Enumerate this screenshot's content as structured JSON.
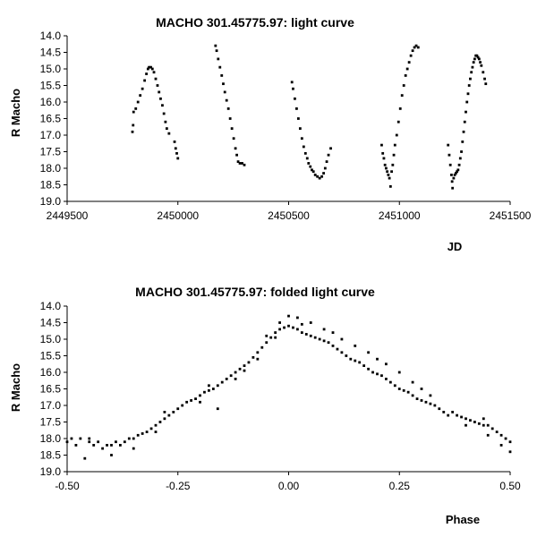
{
  "chart_data": [
    {
      "type": "scatter",
      "title": "MACHO 301.45775.97: light curve",
      "xlabel": "JD",
      "ylabel": "R Macho",
      "xlim": [
        2449500,
        2451500
      ],
      "ylim": [
        14.0,
        19.0
      ],
      "y_inverted": true,
      "grid": false,
      "xticks": [
        "2449500",
        "2450000",
        "2450500",
        "2451000",
        "2451500"
      ],
      "yticks": [
        "14.0",
        "14.5",
        "15.0",
        "15.5",
        "16.0",
        "16.5",
        "17.0",
        "17.5",
        "18.0",
        "18.5",
        "19.0"
      ],
      "series": [
        {
          "points": [
            [
              2449795,
              16.9
            ],
            [
              2449798,
              16.7
            ],
            [
              2449800,
              16.3
            ],
            [
              2449810,
              16.2
            ],
            [
              2449820,
              16.0
            ],
            [
              2449830,
              15.8
            ],
            [
              2449840,
              15.6
            ],
            [
              2449850,
              15.35
            ],
            [
              2449858,
              15.15
            ],
            [
              2449865,
              15.0
            ],
            [
              2449870,
              14.95
            ],
            [
              2449878,
              14.95
            ],
            [
              2449885,
              15.0
            ],
            [
              2449892,
              15.1
            ],
            [
              2449900,
              15.3
            ],
            [
              2449908,
              15.5
            ],
            [
              2449915,
              15.7
            ],
            [
              2449922,
              15.9
            ],
            [
              2449930,
              16.1
            ],
            [
              2449937,
              16.35
            ],
            [
              2449944,
              16.6
            ],
            [
              2449950,
              16.8
            ],
            [
              2449960,
              16.95
            ],
            [
              2449985,
              17.2
            ],
            [
              2449990,
              17.4
            ],
            [
              2449995,
              17.55
            ],
            [
              2450000,
              17.7
            ],
            [
              2450170,
              14.3
            ],
            [
              2450175,
              14.45
            ],
            [
              2450182,
              14.7
            ],
            [
              2450190,
              14.95
            ],
            [
              2450198,
              15.2
            ],
            [
              2450205,
              15.45
            ],
            [
              2450212,
              15.7
            ],
            [
              2450220,
              15.95
            ],
            [
              2450228,
              16.2
            ],
            [
              2450236,
              16.5
            ],
            [
              2450244,
              16.8
            ],
            [
              2450252,
              17.1
            ],
            [
              2450260,
              17.4
            ],
            [
              2450266,
              17.6
            ],
            [
              2450272,
              17.8
            ],
            [
              2450280,
              17.85
            ],
            [
              2450290,
              17.85
            ],
            [
              2450300,
              17.9
            ],
            [
              2450515,
              15.4
            ],
            [
              2450520,
              15.6
            ],
            [
              2450528,
              15.9
            ],
            [
              2450536,
              16.2
            ],
            [
              2450544,
              16.5
            ],
            [
              2450552,
              16.8
            ],
            [
              2450560,
              17.1
            ],
            [
              2450568,
              17.35
            ],
            [
              2450576,
              17.55
            ],
            [
              2450584,
              17.7
            ],
            [
              2450590,
              17.85
            ],
            [
              2450598,
              17.95
            ],
            [
              2450605,
              18.05
            ],
            [
              2450612,
              18.1
            ],
            [
              2450620,
              18.2
            ],
            [
              2450630,
              18.25
            ],
            [
              2450640,
              18.3
            ],
            [
              2450650,
              18.25
            ],
            [
              2450658,
              18.15
            ],
            [
              2450665,
              18.0
            ],
            [
              2450672,
              17.8
            ],
            [
              2450680,
              17.6
            ],
            [
              2450690,
              17.4
            ],
            [
              2450920,
              17.3
            ],
            [
              2450925,
              17.55
            ],
            [
              2450930,
              17.7
            ],
            [
              2450935,
              17.9
            ],
            [
              2450940,
              18.0
            ],
            [
              2450945,
              18.1
            ],
            [
              2450950,
              18.2
            ],
            [
              2450955,
              18.3
            ],
            [
              2450960,
              18.55
            ],
            [
              2450965,
              18.1
            ],
            [
              2450970,
              17.9
            ],
            [
              2450975,
              17.6
            ],
            [
              2450980,
              17.3
            ],
            [
              2450988,
              17.0
            ],
            [
              2450996,
              16.6
            ],
            [
              2451004,
              16.2
            ],
            [
              2451012,
              15.8
            ],
            [
              2451020,
              15.5
            ],
            [
              2451028,
              15.2
            ],
            [
              2451036,
              15.0
            ],
            [
              2451044,
              14.8
            ],
            [
              2451052,
              14.6
            ],
            [
              2451060,
              14.45
            ],
            [
              2451068,
              14.35
            ],
            [
              2451076,
              14.3
            ],
            [
              2451085,
              14.35
            ],
            [
              2451220,
              17.3
            ],
            [
              2451225,
              17.6
            ],
            [
              2451230,
              17.9
            ],
            [
              2451235,
              18.2
            ],
            [
              2451238,
              18.4
            ],
            [
              2451240,
              18.6
            ],
            [
              2451245,
              18.3
            ],
            [
              2451250,
              18.2
            ],
            [
              2451255,
              18.15
            ],
            [
              2451260,
              18.1
            ],
            [
              2451265,
              18.05
            ],
            [
              2451270,
              17.9
            ],
            [
              2451275,
              17.7
            ],
            [
              2451280,
              17.5
            ],
            [
              2451285,
              17.2
            ],
            [
              2451290,
              16.9
            ],
            [
              2451295,
              16.6
            ],
            [
              2451300,
              16.3
            ],
            [
              2451305,
              16.0
            ],
            [
              2451310,
              15.75
            ],
            [
              2451315,
              15.5
            ],
            [
              2451320,
              15.3
            ],
            [
              2451325,
              15.1
            ],
            [
              2451330,
              14.95
            ],
            [
              2451335,
              14.8
            ],
            [
              2451340,
              14.7
            ],
            [
              2451345,
              14.6
            ],
            [
              2451350,
              14.6
            ],
            [
              2451355,
              14.65
            ],
            [
              2451360,
              14.7
            ],
            [
              2451365,
              14.8
            ],
            [
              2451370,
              14.9
            ],
            [
              2451378,
              15.1
            ],
            [
              2451385,
              15.3
            ],
            [
              2451390,
              15.45
            ]
          ]
        }
      ]
    },
    {
      "type": "scatter",
      "title": "MACHO 301.45775.97: folded light curve",
      "xlabel": "Phase",
      "ylabel": "R Macho",
      "xlim": [
        -0.5,
        0.5
      ],
      "ylim": [
        14.0,
        19.0
      ],
      "y_inverted": true,
      "grid": false,
      "xticks": [
        "-0.50",
        "-0.25",
        "0.00",
        "0.25",
        "0.50"
      ],
      "yticks": [
        "14.0",
        "14.5",
        "15.0",
        "15.5",
        "16.0",
        "16.5",
        "17.0",
        "17.5",
        "18.0",
        "18.5",
        "19.0"
      ],
      "series": [
        {
          "points": [
            [
              -0.5,
              18.1
            ],
            [
              -0.49,
              18.0
            ],
            [
              -0.48,
              18.2
            ],
            [
              -0.47,
              18.0
            ],
            [
              -0.46,
              18.6
            ],
            [
              -0.45,
              18.1
            ],
            [
              -0.44,
              18.2
            ],
            [
              -0.43,
              18.1
            ],
            [
              -0.42,
              18.3
            ],
            [
              -0.41,
              18.2
            ],
            [
              -0.4,
              18.2
            ],
            [
              -0.39,
              18.1
            ],
            [
              -0.38,
              18.2
            ],
            [
              -0.37,
              18.1
            ],
            [
              -0.36,
              18.0
            ],
            [
              -0.35,
              18.0
            ],
            [
              -0.34,
              17.9
            ],
            [
              -0.33,
              17.85
            ],
            [
              -0.32,
              17.8
            ],
            [
              -0.31,
              17.7
            ],
            [
              -0.3,
              17.6
            ],
            [
              -0.29,
              17.5
            ],
            [
              -0.28,
              17.4
            ],
            [
              -0.27,
              17.3
            ],
            [
              -0.26,
              17.2
            ],
            [
              -0.25,
              17.1
            ],
            [
              -0.24,
              17.0
            ],
            [
              -0.23,
              16.9
            ],
            [
              -0.22,
              16.85
            ],
            [
              -0.21,
              16.8
            ],
            [
              -0.2,
              16.7
            ],
            [
              -0.19,
              16.6
            ],
            [
              -0.18,
              16.55
            ],
            [
              -0.17,
              16.5
            ],
            [
              -0.16,
              16.4
            ],
            [
              -0.15,
              16.3
            ],
            [
              -0.14,
              16.2
            ],
            [
              -0.13,
              16.1
            ],
            [
              -0.12,
              16.0
            ],
            [
              -0.11,
              15.9
            ],
            [
              -0.1,
              15.8
            ],
            [
              -0.09,
              15.7
            ],
            [
              -0.08,
              15.55
            ],
            [
              -0.07,
              15.4
            ],
            [
              -0.06,
              15.25
            ],
            [
              -0.05,
              15.1
            ],
            [
              -0.04,
              14.95
            ],
            [
              -0.03,
              14.8
            ],
            [
              -0.02,
              14.7
            ],
            [
              -0.01,
              14.65
            ],
            [
              0.0,
              14.6
            ],
            [
              0.01,
              14.65
            ],
            [
              0.02,
              14.7
            ],
            [
              0.03,
              14.8
            ],
            [
              0.04,
              14.85
            ],
            [
              0.05,
              14.9
            ],
            [
              0.06,
              14.95
            ],
            [
              0.07,
              15.0
            ],
            [
              0.08,
              15.05
            ],
            [
              0.09,
              15.1
            ],
            [
              0.1,
              15.2
            ],
            [
              0.11,
              15.3
            ],
            [
              0.12,
              15.4
            ],
            [
              0.13,
              15.5
            ],
            [
              0.14,
              15.6
            ],
            [
              0.15,
              15.65
            ],
            [
              0.16,
              15.7
            ],
            [
              0.17,
              15.8
            ],
            [
              0.18,
              15.9
            ],
            [
              0.19,
              16.0
            ],
            [
              0.2,
              16.05
            ],
            [
              0.21,
              16.1
            ],
            [
              0.22,
              16.2
            ],
            [
              0.23,
              16.3
            ],
            [
              0.24,
              16.4
            ],
            [
              0.25,
              16.5
            ],
            [
              0.26,
              16.55
            ],
            [
              0.27,
              16.6
            ],
            [
              0.28,
              16.7
            ],
            [
              0.29,
              16.8
            ],
            [
              0.3,
              16.85
            ],
            [
              0.31,
              16.9
            ],
            [
              0.32,
              16.95
            ],
            [
              0.33,
              17.0
            ],
            [
              0.34,
              17.1
            ],
            [
              0.37,
              17.2
            ],
            [
              0.38,
              17.3
            ],
            [
              0.39,
              17.35
            ],
            [
              0.4,
              17.4
            ],
            [
              0.41,
              17.45
            ],
            [
              0.42,
              17.5
            ],
            [
              0.43,
              17.55
            ],
            [
              0.44,
              17.6
            ],
            [
              0.45,
              17.6
            ],
            [
              0.46,
              17.7
            ],
            [
              0.47,
              17.8
            ],
            [
              0.48,
              17.9
            ],
            [
              0.49,
              18.0
            ],
            [
              0.5,
              18.1
            ],
            [
              0.5,
              18.4
            ],
            [
              -0.35,
              18.3
            ],
            [
              -0.4,
              18.5
            ],
            [
              -0.28,
              17.2
            ],
            [
              -0.18,
              16.4
            ],
            [
              -0.16,
              17.1
            ],
            [
              -0.1,
              15.95
            ],
            [
              -0.05,
              14.9
            ],
            [
              -0.02,
              14.5
            ],
            [
              0.0,
              14.3
            ],
            [
              0.02,
              14.35
            ],
            [
              0.05,
              14.5
            ],
            [
              0.1,
              14.8
            ],
            [
              0.15,
              15.2
            ],
            [
              0.2,
              15.6
            ],
            [
              0.25,
              16.0
            ],
            [
              0.28,
              16.3
            ],
            [
              0.3,
              16.5
            ],
            [
              0.32,
              16.7
            ],
            [
              0.35,
              17.2
            ],
            [
              0.4,
              17.6
            ],
            [
              0.45,
              17.9
            ],
            [
              0.48,
              18.2
            ],
            [
              0.44,
              17.4
            ],
            [
              0.36,
              17.3
            ],
            [
              -0.45,
              18.0
            ],
            [
              -0.3,
              17.8
            ],
            [
              -0.2,
              16.9
            ],
            [
              -0.12,
              16.2
            ],
            [
              -0.07,
              15.6
            ],
            [
              -0.03,
              14.95
            ],
            [
              0.03,
              14.55
            ],
            [
              0.08,
              14.7
            ],
            [
              0.12,
              15.0
            ],
            [
              0.18,
              15.4
            ],
            [
              0.22,
              15.75
            ]
          ]
        }
      ]
    }
  ]
}
